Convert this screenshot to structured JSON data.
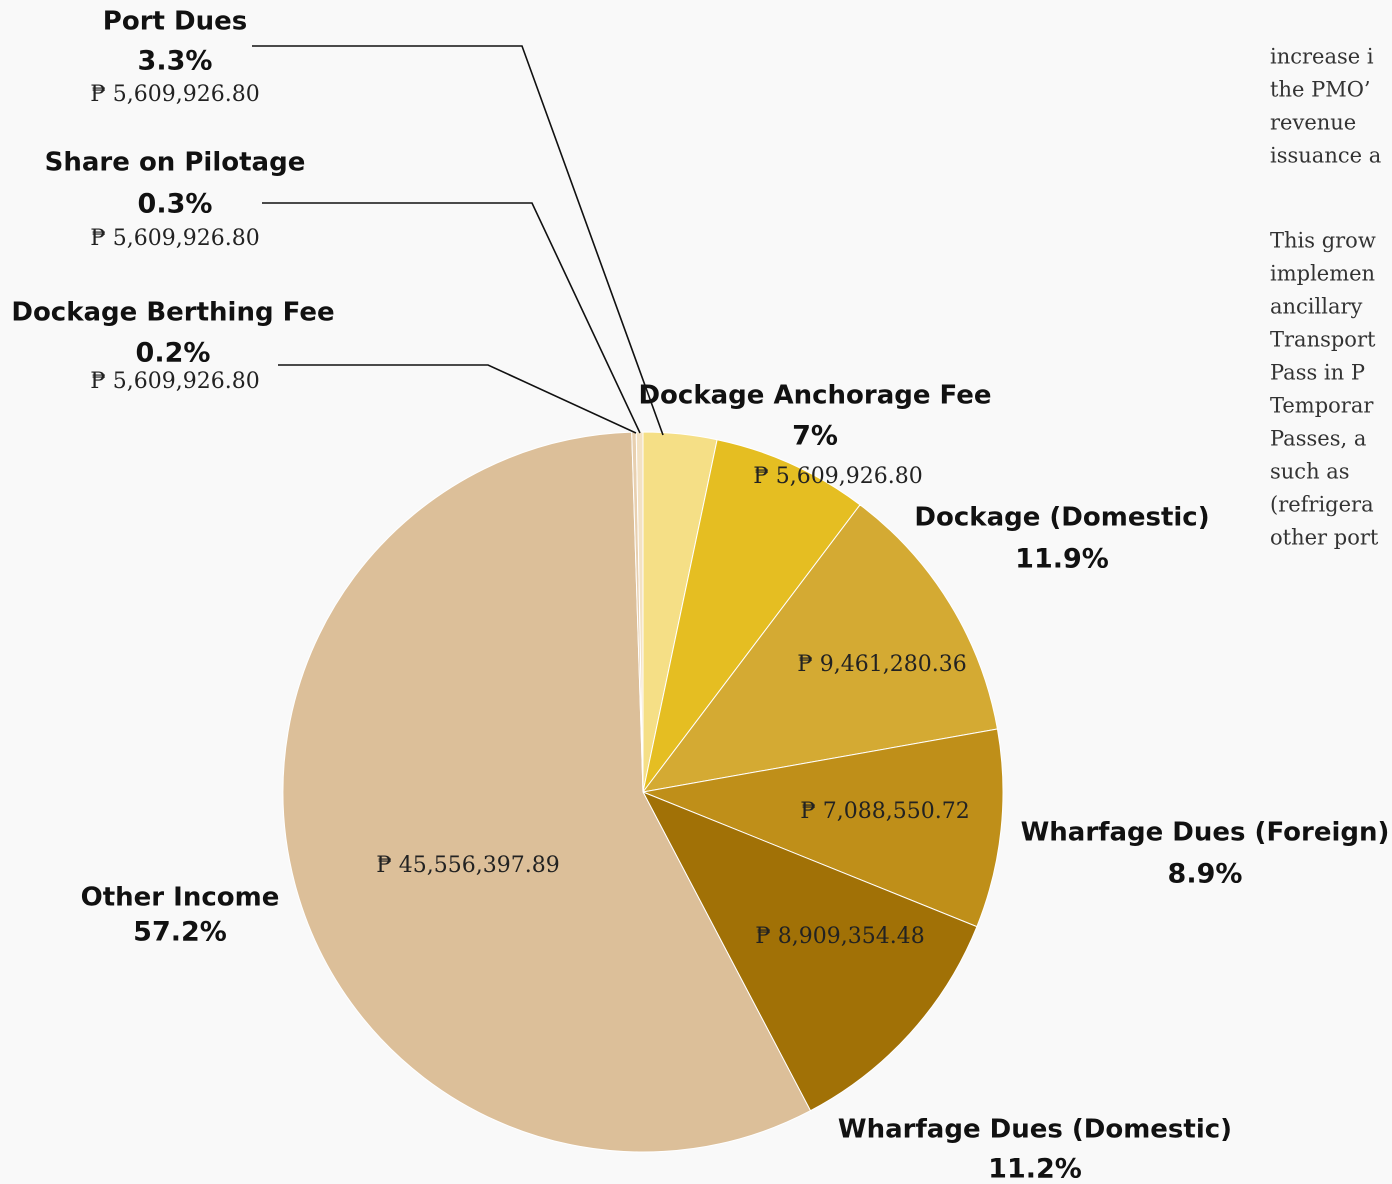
{
  "chart_data": {
    "type": "pie",
    "categories": [
      "Port Dues",
      "Dockage Anchorage Fee",
      "Dockage (Domestic)",
      "Wharfage Dues (Foreign)",
      "Wharfage Dues (Domestic)",
      "Other Income",
      "Dockage Berthing Fee",
      "Share on Pilotage"
    ],
    "values": [
      3.3,
      7,
      11.9,
      8.9,
      11.2,
      57.2,
      0.2,
      0.3
    ],
    "value_labels": [
      "3.3%",
      "7%",
      "11.9%",
      "8.9%",
      "11.2%",
      "57.2%",
      "0.2%",
      "0.3%"
    ],
    "amounts": [
      "₱ 5,609,926.80",
      "₱ 5,609,926.80",
      "₱ 9,461,280.36",
      "₱ 7,088,550.72",
      "₱ 8,909,354.48",
      "₱ 45,556,397.89",
      "₱ 5,609,926.80",
      "₱ 5,609,926.80"
    ],
    "colors": [
      "#f5df86",
      "#e5be22",
      "#d4aa33",
      "#bf8f19",
      "#a17106",
      "#dcbf99",
      "#e8d0b0",
      "#f3e2c4"
    ]
  },
  "side_text": {
    "paragraphs": [
      [
        "increase i",
        "the  PMO’",
        "revenue",
        "issuance a"
      ],
      [
        "This  grow",
        "implemen",
        "ancillary",
        "Transport",
        "Pass  in  P",
        "Temporar",
        "Passes,  a",
        "such   as",
        "(refrigera",
        "other port"
      ]
    ]
  }
}
